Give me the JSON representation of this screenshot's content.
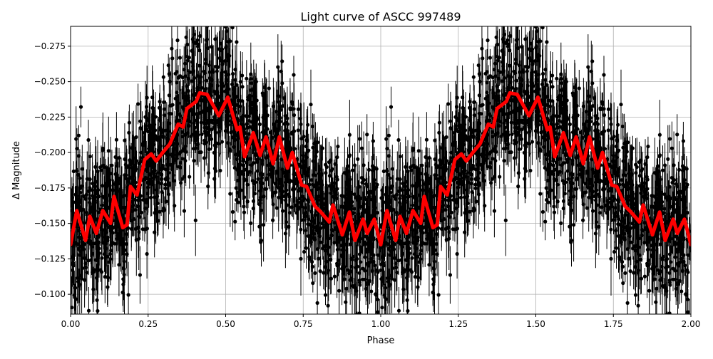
{
  "chart_data": {
    "type": "scatter",
    "title": "Light curve of ASCC 997489",
    "xlabel": "Phase",
    "ylabel": "Δ Magnitude",
    "xlim": [
      0,
      2
    ],
    "ylim": [
      -0.086,
      -0.289
    ],
    "y_inverted": true,
    "grid": true,
    "x_ticks": [
      "0.00",
      "0.25",
      "0.50",
      "0.75",
      "1.00",
      "1.25",
      "1.50",
      "1.75",
      "2.00"
    ],
    "y_ticks": [
      "-0.100",
      "-0.125",
      "-0.150",
      "-0.175",
      "-0.200",
      "-0.225",
      "-0.250",
      "-0.275"
    ],
    "cycles_shown": 2,
    "series": [
      {
        "role": "observations",
        "style": "black points with error bars",
        "color": "#000000",
        "spread": "about ±0.05 mag around the model curve; error bars about 0.01–0.03 mag"
      },
      {
        "role": "model",
        "style": "thick line",
        "color": "#ff0000",
        "phase": [
          0.0,
          0.02,
          0.048,
          0.062,
          0.083,
          0.104,
          0.129,
          0.14,
          0.168,
          0.182,
          0.193,
          0.214,
          0.239,
          0.26,
          0.276,
          0.297,
          0.32,
          0.347,
          0.363,
          0.375,
          0.405,
          0.416,
          0.44,
          0.478,
          0.507,
          0.537,
          0.546,
          0.561,
          0.589,
          0.611,
          0.63,
          0.653,
          0.673,
          0.699,
          0.715,
          0.745,
          0.761,
          0.788,
          0.807,
          0.834,
          0.846,
          0.876,
          0.899,
          0.917,
          0.943,
          0.956,
          0.979,
          1.0
        ],
        "magnitude": [
          -0.135,
          -0.159,
          -0.138,
          -0.155,
          -0.143,
          -0.159,
          -0.15,
          -0.169,
          -0.147,
          -0.149,
          -0.176,
          -0.17,
          -0.195,
          -0.199,
          -0.194,
          -0.2,
          -0.206,
          -0.22,
          -0.218,
          -0.231,
          -0.236,
          -0.242,
          -0.241,
          -0.226,
          -0.239,
          -0.216,
          -0.218,
          -0.197,
          -0.214,
          -0.198,
          -0.211,
          -0.192,
          -0.211,
          -0.189,
          -0.2,
          -0.177,
          -0.176,
          -0.162,
          -0.158,
          -0.151,
          -0.163,
          -0.142,
          -0.158,
          -0.138,
          -0.153,
          -0.143,
          -0.153,
          -0.135
        ]
      }
    ]
  }
}
